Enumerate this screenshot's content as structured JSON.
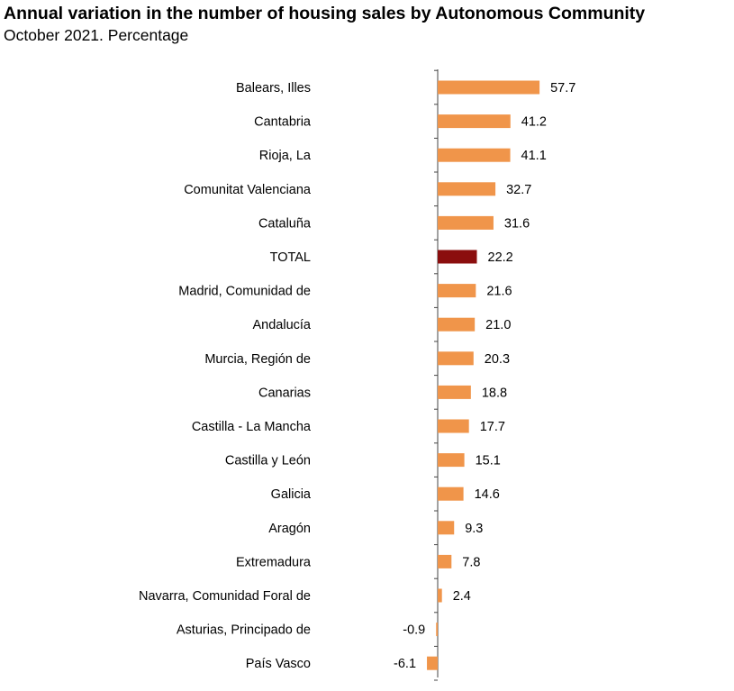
{
  "chart_data": {
    "type": "bar",
    "orientation": "horizontal",
    "title": "Annual variation in the number of housing sales by Autonomous Community",
    "subtitle": "October 2021. Percentage",
    "xlim": [
      -7,
      60
    ],
    "categories": [
      "Balears, Illes",
      "Cantabria",
      "Rioja, La",
      "Comunitat Valenciana",
      "Cataluña",
      "TOTAL",
      "Madrid, Comunidad de",
      "Andalucía",
      "Murcia, Región de",
      "Canarias",
      "Castilla - La Mancha",
      "Castilla y León",
      "Galicia",
      "Aragón",
      "Extremadura",
      "Navarra, Comunidad Foral de",
      "Asturias, Principado de",
      "País Vasco"
    ],
    "values": [
      57.7,
      41.2,
      41.1,
      32.7,
      31.6,
      22.2,
      21.6,
      21.0,
      20.3,
      18.8,
      17.7,
      15.1,
      14.6,
      9.3,
      7.8,
      2.4,
      -0.9,
      -6.1
    ],
    "value_labels": [
      "57.7",
      "41.2",
      "41.1",
      "32.7",
      "31.6",
      "22.2",
      "21.6",
      "21.0",
      "20.3",
      "18.8",
      "17.7",
      "15.1",
      "14.6",
      "9.3",
      "7.8",
      "2.4",
      "-0.9",
      "-6.1"
    ],
    "highlight_category": "TOTAL",
    "colors": {
      "bar": "#F0954A",
      "highlight": "#8B0E0E",
      "axis": "#444444"
    }
  }
}
